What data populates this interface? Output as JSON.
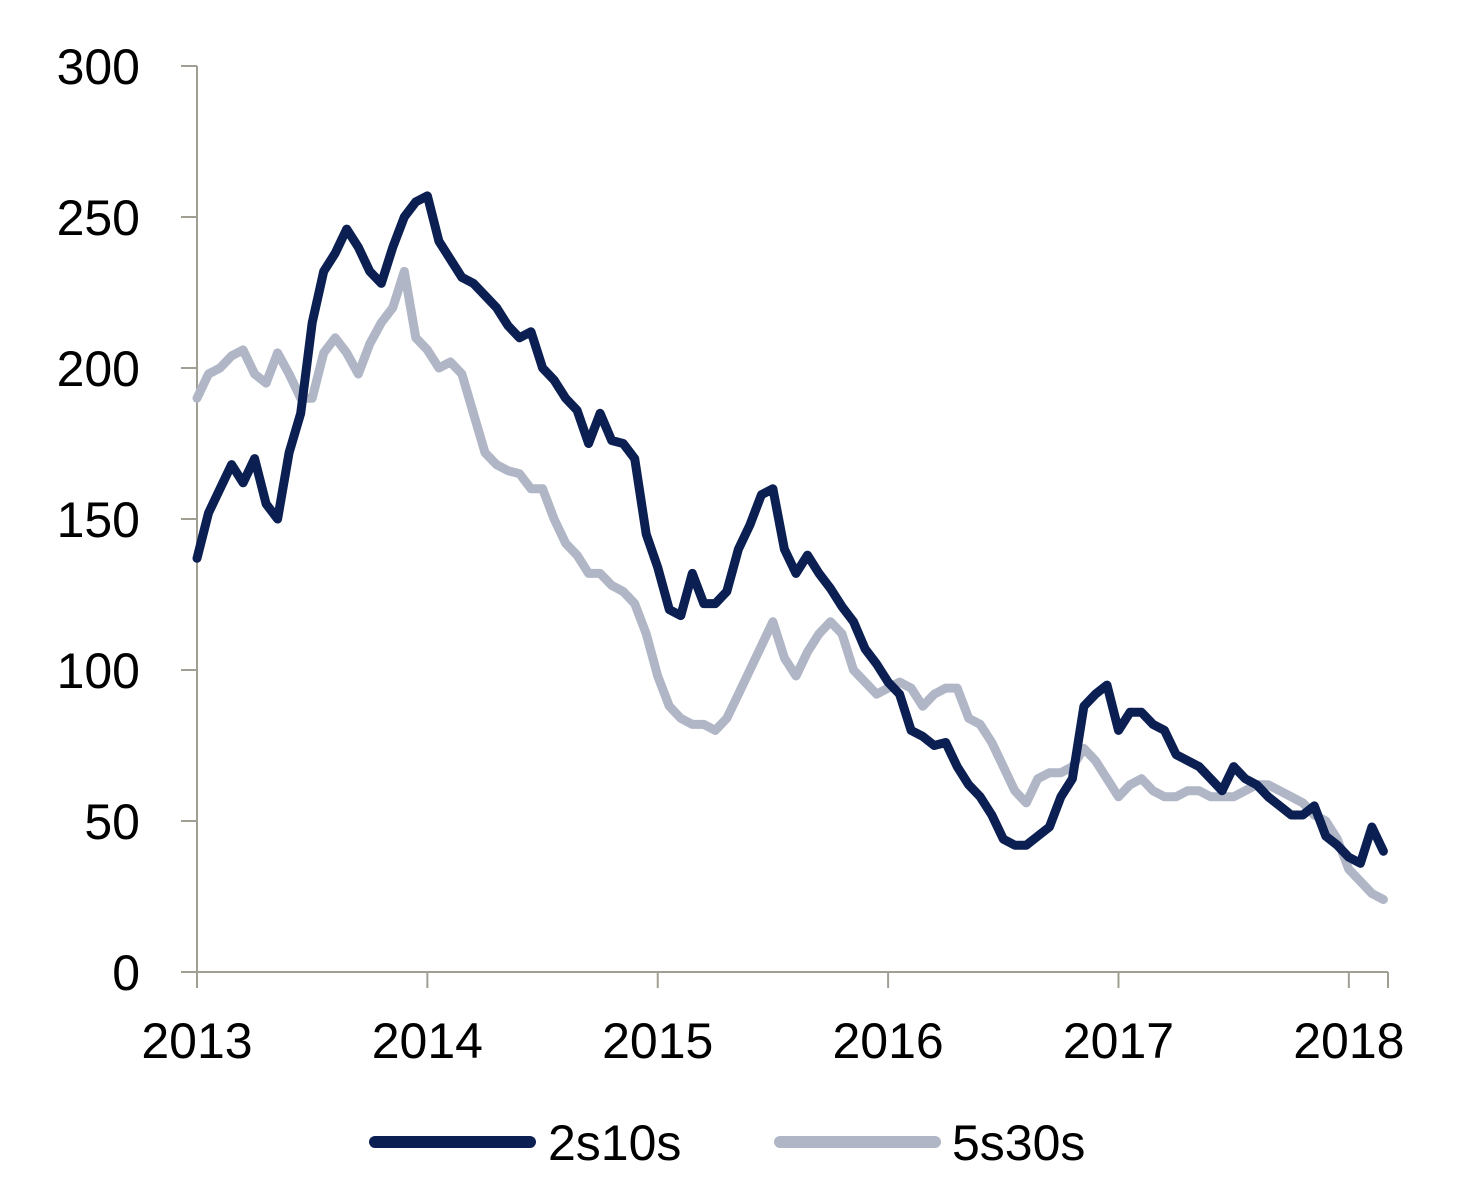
{
  "chart_data": {
    "type": "line",
    "title": "",
    "xlabel": "",
    "ylabel": "",
    "ylim": [
      0,
      300
    ],
    "yticks": [
      0,
      50,
      100,
      150,
      200,
      250,
      300
    ],
    "xlim": [
      2013.0,
      2018.17
    ],
    "xticks": [
      2013,
      2014,
      2015,
      2016,
      2017,
      2018
    ],
    "x_tick_labels": [
      "2013",
      "2014",
      "2015",
      "2016",
      "2017",
      "2018"
    ],
    "grid": false,
    "legend": "bottom-center",
    "series": [
      {
        "name": "2s10s",
        "color": "#0b1f52",
        "x": [
          2013.0,
          2013.05,
          2013.1,
          2013.15,
          2013.2,
          2013.25,
          2013.3,
          2013.35,
          2013.4,
          2013.45,
          2013.5,
          2013.55,
          2013.6,
          2013.65,
          2013.7,
          2013.75,
          2013.8,
          2013.85,
          2013.9,
          2013.95,
          2014.0,
          2014.05,
          2014.1,
          2014.15,
          2014.2,
          2014.25,
          2014.3,
          2014.35,
          2014.4,
          2014.45,
          2014.5,
          2014.55,
          2014.6,
          2014.65,
          2014.7,
          2014.75,
          2014.8,
          2014.85,
          2014.9,
          2014.95,
          2015.0,
          2015.05,
          2015.1,
          2015.15,
          2015.2,
          2015.25,
          2015.3,
          2015.35,
          2015.4,
          2015.45,
          2015.5,
          2015.55,
          2015.6,
          2015.65,
          2015.7,
          2015.75,
          2015.8,
          2015.85,
          2015.9,
          2015.95,
          2016.0,
          2016.05,
          2016.1,
          2016.15,
          2016.2,
          2016.25,
          2016.3,
          2016.35,
          2016.4,
          2016.45,
          2016.5,
          2016.55,
          2016.6,
          2016.65,
          2016.7,
          2016.75,
          2016.8,
          2016.85,
          2016.9,
          2016.95,
          2017.0,
          2017.05,
          2017.1,
          2017.15,
          2017.2,
          2017.25,
          2017.3,
          2017.35,
          2017.4,
          2017.45,
          2017.5,
          2017.55,
          2017.6,
          2017.65,
          2017.7,
          2017.75,
          2017.8,
          2017.85,
          2017.9,
          2017.95,
          2018.0,
          2018.05,
          2018.1,
          2018.15
        ],
        "values": [
          137,
          152,
          160,
          168,
          162,
          170,
          155,
          150,
          172,
          185,
          215,
          232,
          238,
          246,
          240,
          232,
          228,
          240,
          250,
          255,
          257,
          242,
          236,
          230,
          228,
          224,
          220,
          214,
          210,
          212,
          200,
          196,
          190,
          186,
          175,
          185,
          176,
          175,
          170,
          145,
          134,
          120,
          118,
          132,
          122,
          122,
          126,
          140,
          148,
          158,
          160,
          140,
          132,
          138,
          132,
          127,
          121,
          116,
          107,
          102,
          96,
          92,
          80,
          78,
          75,
          76,
          68,
          62,
          58,
          52,
          44,
          42,
          42,
          45,
          48,
          58,
          64,
          88,
          92,
          95,
          80,
          86,
          86,
          82,
          80,
          72,
          70,
          68,
          64,
          60,
          68,
          64,
          62,
          58,
          55,
          52,
          52,
          55,
          45,
          42,
          38,
          36,
          48,
          40
        ]
      },
      {
        "name": "5s30s",
        "color": "#b0b6c6",
        "x": [
          2013.0,
          2013.05,
          2013.1,
          2013.15,
          2013.2,
          2013.25,
          2013.3,
          2013.35,
          2013.4,
          2013.45,
          2013.5,
          2013.55,
          2013.6,
          2013.65,
          2013.7,
          2013.75,
          2013.8,
          2013.85,
          2013.9,
          2013.95,
          2014.0,
          2014.05,
          2014.1,
          2014.15,
          2014.2,
          2014.25,
          2014.3,
          2014.35,
          2014.4,
          2014.45,
          2014.5,
          2014.55,
          2014.6,
          2014.65,
          2014.7,
          2014.75,
          2014.8,
          2014.85,
          2014.9,
          2014.95,
          2015.0,
          2015.05,
          2015.1,
          2015.15,
          2015.2,
          2015.25,
          2015.3,
          2015.35,
          2015.4,
          2015.45,
          2015.5,
          2015.55,
          2015.6,
          2015.65,
          2015.7,
          2015.75,
          2015.8,
          2015.85,
          2015.9,
          2015.95,
          2016.0,
          2016.05,
          2016.1,
          2016.15,
          2016.2,
          2016.25,
          2016.3,
          2016.35,
          2016.4,
          2016.45,
          2016.5,
          2016.55,
          2016.6,
          2016.65,
          2016.7,
          2016.75,
          2016.8,
          2016.85,
          2016.9,
          2016.95,
          2017.0,
          2017.05,
          2017.1,
          2017.15,
          2017.2,
          2017.25,
          2017.3,
          2017.35,
          2017.4,
          2017.45,
          2017.5,
          2017.55,
          2017.6,
          2017.65,
          2017.7,
          2017.75,
          2017.8,
          2017.85,
          2017.9,
          2017.95,
          2018.0,
          2018.05,
          2018.1,
          2018.15
        ],
        "values": [
          190,
          198,
          200,
          204,
          206,
          198,
          195,
          205,
          198,
          190,
          190,
          205,
          210,
          205,
          198,
          208,
          215,
          220,
          232,
          210,
          206,
          200,
          202,
          198,
          185,
          172,
          168,
          166,
          165,
          160,
          160,
          150,
          142,
          138,
          132,
          132,
          128,
          126,
          122,
          112,
          98,
          88,
          84,
          82,
          82,
          80,
          84,
          92,
          100,
          108,
          116,
          104,
          98,
          106,
          112,
          116,
          112,
          100,
          96,
          92,
          94,
          96,
          94,
          88,
          92,
          94,
          94,
          84,
          82,
          76,
          68,
          60,
          56,
          64,
          66,
          66,
          68,
          74,
          70,
          64,
          58,
          62,
          64,
          60,
          58,
          58,
          60,
          60,
          58,
          58,
          58,
          60,
          62,
          62,
          60,
          58,
          56,
          52,
          50,
          44,
          34,
          30,
          26,
          24
        ]
      }
    ]
  }
}
